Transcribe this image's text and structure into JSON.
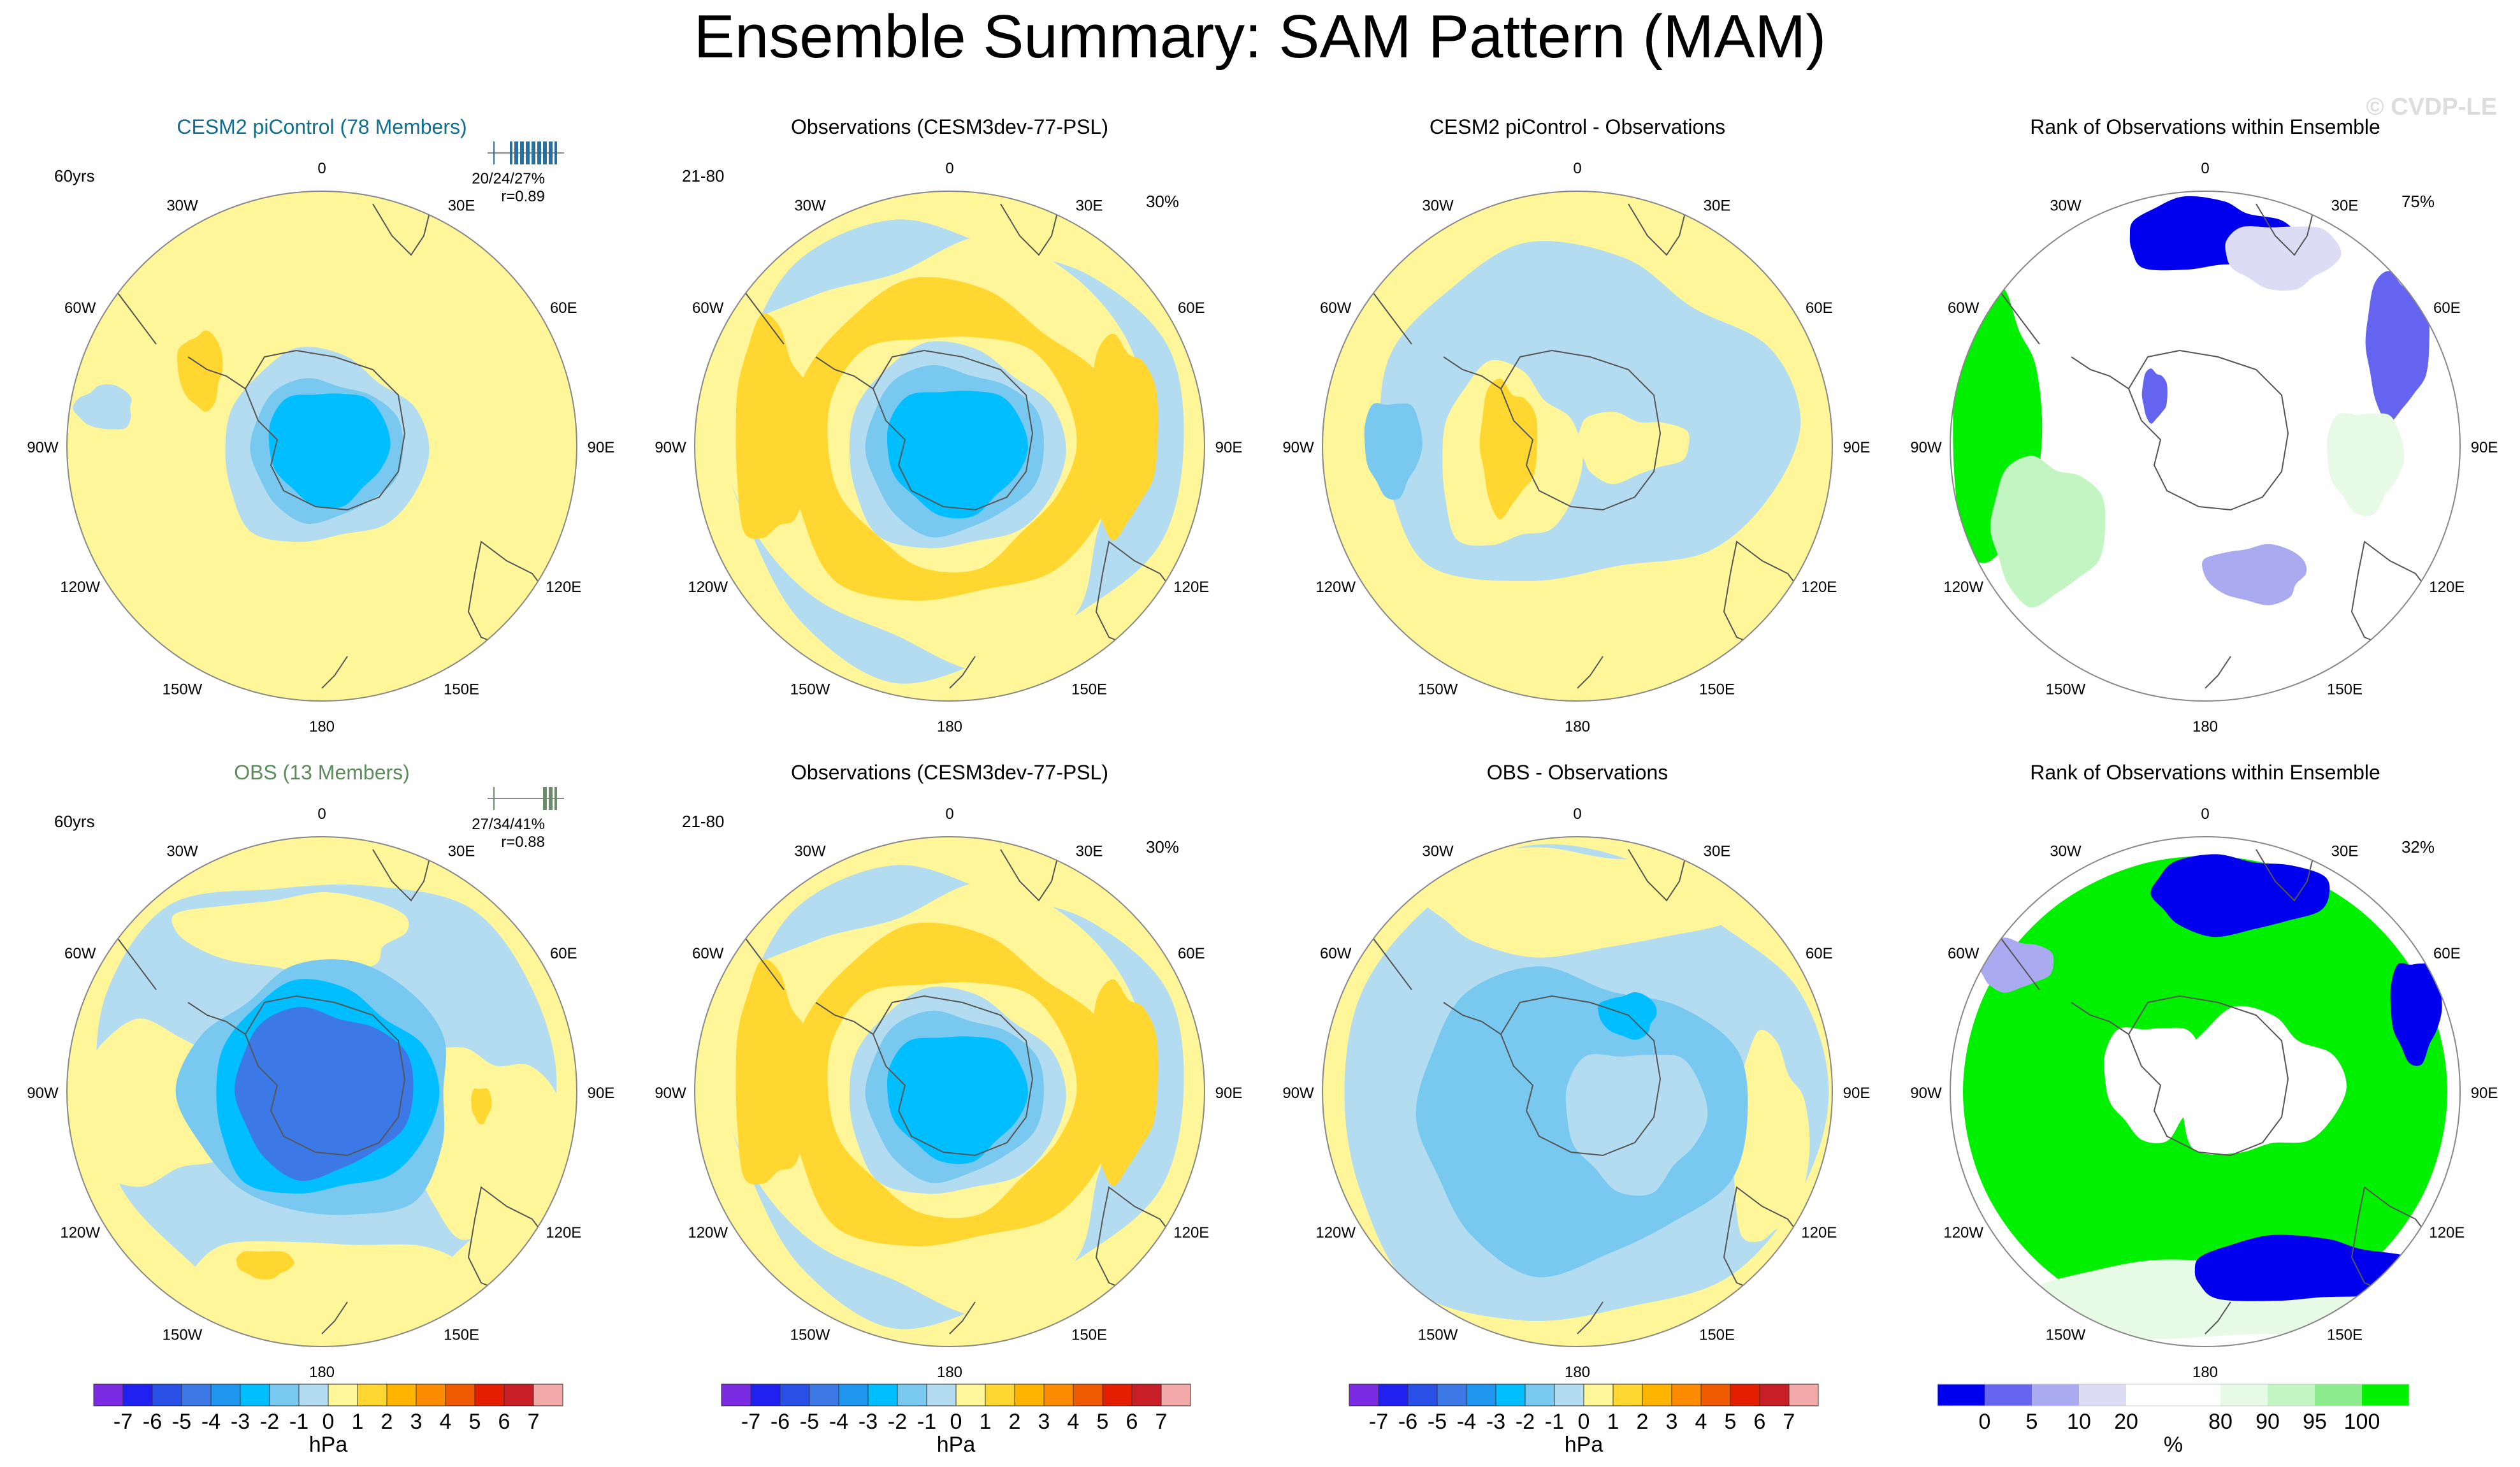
{
  "title": "Ensemble Summary: SAM Pattern (MAM)",
  "watermark": "© CVDP-LE",
  "colors": {
    "ocean_yellow": "#FFF699",
    "land_line": "#555555",
    "title_teal": "#0E6E8C",
    "title_green": "#5C8C5C"
  },
  "lon_labels": [
    "0",
    "30E",
    "60E",
    "90E",
    "120E",
    "150E",
    "180",
    "150W",
    "120W",
    "90W",
    "60W",
    "30W"
  ],
  "panels": [
    {
      "row": 0,
      "col": 0,
      "title": "CESM2 piControl (78 Members)",
      "title_color": "teal",
      "left_note": "60yrs",
      "right_note": "",
      "stats_line1": "20/24/27%",
      "stats_line2": "r=0.89",
      "kind": "ens",
      "variant": "a"
    },
    {
      "row": 0,
      "col": 1,
      "title": "Observations (CESM3dev-77-PSL)",
      "title_color": "black",
      "left_note": "21-80",
      "right_note": "30%",
      "stats_line1": "",
      "stats_line2": "",
      "kind": "obs",
      "variant": "a"
    },
    {
      "row": 0,
      "col": 2,
      "title": "CESM2 piControl - Observations",
      "title_color": "black",
      "left_note": "",
      "right_note": "",
      "stats_line1": "",
      "stats_line2": "",
      "kind": "diff",
      "variant": "a"
    },
    {
      "row": 0,
      "col": 3,
      "title": "Rank of Observations within Ensemble",
      "title_color": "black",
      "left_note": "",
      "right_note": "75%",
      "stats_line1": "",
      "stats_line2": "",
      "kind": "rank",
      "variant": "a"
    },
    {
      "row": 1,
      "col": 0,
      "title": "OBS (13 Members)",
      "title_color": "green",
      "left_note": "60yrs",
      "right_note": "",
      "stats_line1": "27/34/41%",
      "stats_line2": "r=0.88",
      "kind": "ens",
      "variant": "b"
    },
    {
      "row": 1,
      "col": 1,
      "title": "Observations (CESM3dev-77-PSL)",
      "title_color": "black",
      "left_note": "21-80",
      "right_note": "30%",
      "stats_line1": "",
      "stats_line2": "",
      "kind": "obs",
      "variant": "b"
    },
    {
      "row": 1,
      "col": 2,
      "title": "OBS - Observations",
      "title_color": "black",
      "left_note": "",
      "right_note": "",
      "stats_line1": "",
      "stats_line2": "",
      "kind": "diff",
      "variant": "b"
    },
    {
      "row": 1,
      "col": 3,
      "title": "Rank of Observations within Ensemble",
      "title_color": "black",
      "left_note": "",
      "right_note": "32%",
      "stats_line1": "",
      "stats_line2": "",
      "kind": "rank",
      "variant": "b"
    }
  ],
  "colorbars": [
    {
      "id": "hpa-1",
      "kind": "hpa",
      "units": "hPa"
    },
    {
      "id": "hpa-2",
      "kind": "hpa",
      "units": "hPa"
    },
    {
      "id": "hpa-3",
      "kind": "hpa",
      "units": "hPa"
    },
    {
      "id": "pct",
      "kind": "pct",
      "units": "%"
    }
  ],
  "hpa_scale": {
    "colors": [
      "#7B2BE2",
      "#2020F0",
      "#2850E6",
      "#3C78E6",
      "#1E96F0",
      "#00BEFF",
      "#78C8F0",
      "#B4DCF0",
      "#FFF699",
      "#FFD730",
      "#FFB400",
      "#FF8C00",
      "#F05A00",
      "#E61E00",
      "#C81E28",
      "#F5AAAA"
    ],
    "labels": [
      "-7",
      "-6",
      "-5",
      "-4",
      "-3",
      "-2",
      "-1",
      "0",
      "1",
      "2",
      "3",
      "4",
      "5",
      "6",
      "7"
    ]
  },
  "pct_scale": {
    "colors": [
      "#0000EE",
      "#6464F0",
      "#AAAAF0",
      "#DCDCF5",
      "#FFFFFF",
      "#FFFFFF",
      "#E6FAE6",
      "#C3F5C3",
      "#8CEB8C",
      "#00F000"
    ],
    "labels": [
      "0",
      "5",
      "10",
      "20",
      "80",
      "90",
      "95",
      "100"
    ]
  }
}
